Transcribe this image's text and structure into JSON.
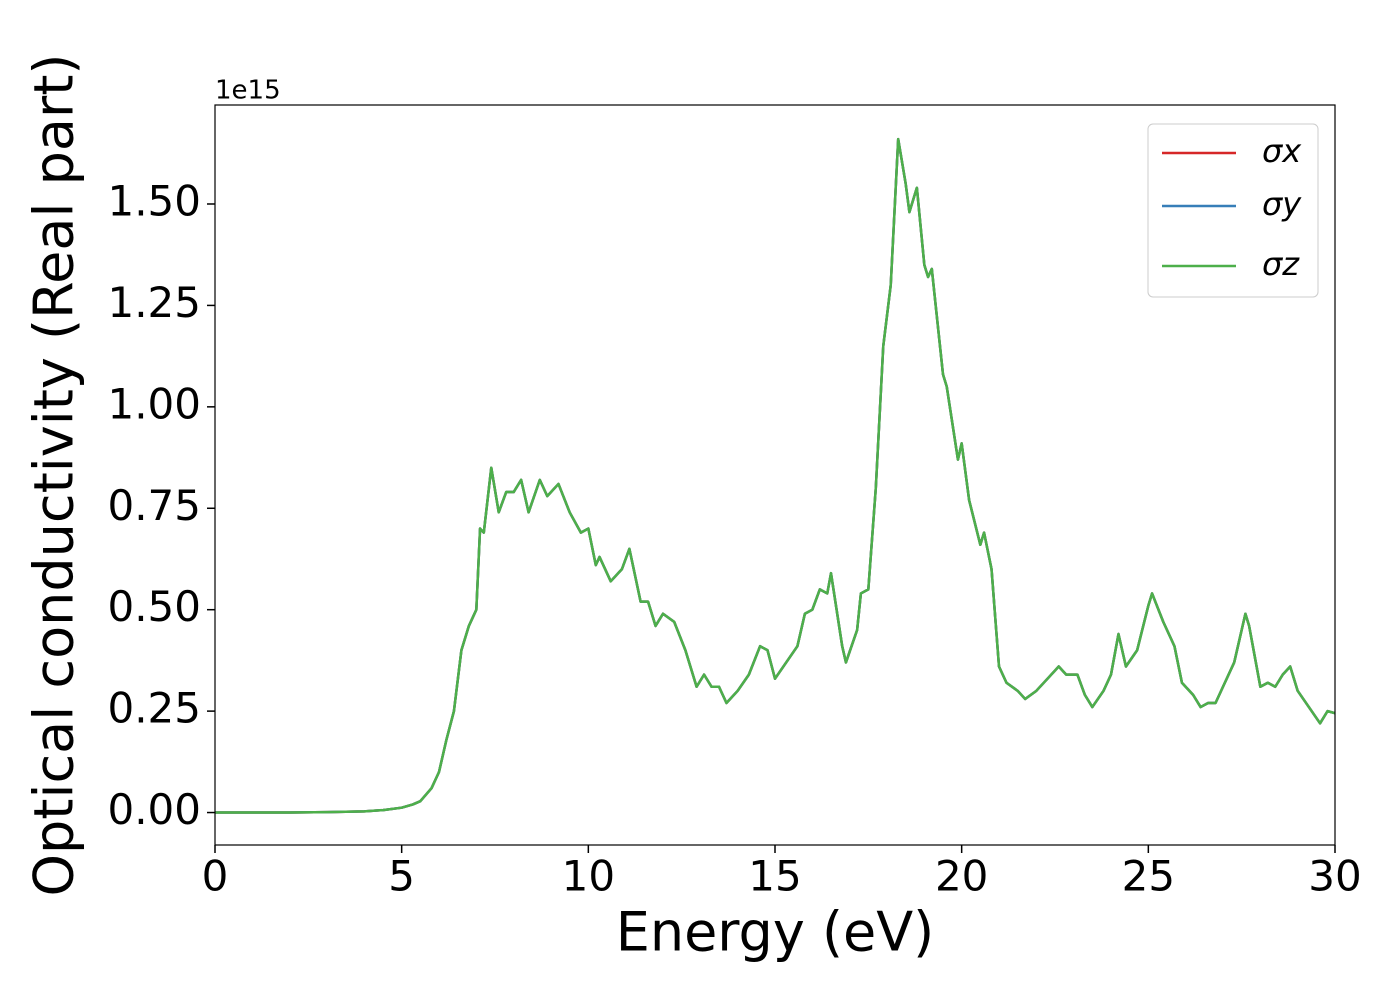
{
  "chart_data": {
    "type": "line",
    "x_label": "Energy (eV)",
    "y_label": "Optical conductivity (Real part)",
    "y_offset_text": "1e15",
    "x": [
      0,
      1,
      2,
      3,
      4,
      4.5,
      5,
      5.3,
      5.5,
      5.8,
      6.0,
      6.2,
      6.4,
      6.6,
      6.8,
      7.0,
      7.1,
      7.2,
      7.4,
      7.6,
      7.8,
      8.0,
      8.2,
      8.4,
      8.7,
      8.9,
      9.2,
      9.5,
      9.8,
      10.0,
      10.2,
      10.3,
      10.6,
      10.9,
      11.1,
      11.4,
      11.6,
      11.8,
      12.0,
      12.3,
      12.6,
      12.9,
      13.1,
      13.3,
      13.5,
      13.7,
      14.0,
      14.3,
      14.6,
      14.8,
      15.0,
      15.3,
      15.6,
      15.8,
      16.0,
      16.2,
      16.4,
      16.5,
      16.8,
      16.9,
      17.2,
      17.3,
      17.5,
      17.7,
      17.9,
      18.1,
      18.3,
      18.5,
      18.6,
      18.8,
      19.0,
      19.1,
      19.2,
      19.5,
      19.6,
      19.9,
      20.0,
      20.2,
      20.5,
      20.6,
      20.8,
      21.0,
      21.2,
      21.5,
      21.7,
      22.0,
      22.3,
      22.6,
      22.8,
      23.1,
      23.3,
      23.5,
      23.8,
      24.0,
      24.2,
      24.4,
      24.7,
      25.0,
      25.1,
      25.4,
      25.7,
      25.9,
      26.2,
      26.4,
      26.6,
      26.8,
      27.0,
      27.3,
      27.5,
      27.6,
      27.7,
      28.0,
      28.2,
      28.4,
      28.6,
      28.8,
      29.0,
      29.3,
      29.6,
      29.8,
      30.0
    ],
    "series": [
      {
        "name": "σx",
        "color": "#d62728",
        "values": [
          0,
          0,
          0,
          0.001,
          0.003,
          0.006,
          0.012,
          0.02,
          0.028,
          0.06,
          0.1,
          0.18,
          0.25,
          0.4,
          0.46,
          0.5,
          0.7,
          0.69,
          0.85,
          0.74,
          0.79,
          0.79,
          0.82,
          0.74,
          0.82,
          0.78,
          0.81,
          0.74,
          0.69,
          0.7,
          0.61,
          0.63,
          0.57,
          0.6,
          0.65,
          0.52,
          0.52,
          0.46,
          0.49,
          0.47,
          0.4,
          0.31,
          0.34,
          0.31,
          0.31,
          0.27,
          0.3,
          0.34,
          0.41,
          0.4,
          0.33,
          0.37,
          0.41,
          0.49,
          0.5,
          0.55,
          0.54,
          0.59,
          0.41,
          0.37,
          0.45,
          0.54,
          0.55,
          0.8,
          1.15,
          1.3,
          1.66,
          1.55,
          1.48,
          1.54,
          1.35,
          1.32,
          1.34,
          1.08,
          1.05,
          0.87,
          0.91,
          0.77,
          0.66,
          0.69,
          0.6,
          0.36,
          0.32,
          0.3,
          0.28,
          0.3,
          0.33,
          0.36,
          0.34,
          0.34,
          0.29,
          0.26,
          0.3,
          0.34,
          0.44,
          0.36,
          0.4,
          0.51,
          0.54,
          0.47,
          0.41,
          0.32,
          0.29,
          0.26,
          0.27,
          0.27,
          0.31,
          0.37,
          0.45,
          0.49,
          0.46,
          0.31,
          0.32,
          0.31,
          0.34,
          0.36,
          0.3,
          0.26,
          0.22,
          0.25,
          0.245
        ]
      },
      {
        "name": "σy",
        "color": "#377eb8",
        "values": [
          0,
          0,
          0,
          0.001,
          0.003,
          0.006,
          0.012,
          0.02,
          0.028,
          0.06,
          0.1,
          0.18,
          0.25,
          0.4,
          0.46,
          0.5,
          0.7,
          0.69,
          0.85,
          0.74,
          0.79,
          0.79,
          0.82,
          0.74,
          0.82,
          0.78,
          0.81,
          0.74,
          0.69,
          0.7,
          0.61,
          0.63,
          0.57,
          0.6,
          0.65,
          0.52,
          0.52,
          0.46,
          0.49,
          0.47,
          0.4,
          0.31,
          0.34,
          0.31,
          0.31,
          0.27,
          0.3,
          0.34,
          0.41,
          0.4,
          0.33,
          0.37,
          0.41,
          0.49,
          0.5,
          0.55,
          0.54,
          0.59,
          0.41,
          0.37,
          0.45,
          0.54,
          0.55,
          0.8,
          1.15,
          1.3,
          1.66,
          1.55,
          1.48,
          1.54,
          1.35,
          1.32,
          1.34,
          1.08,
          1.05,
          0.87,
          0.91,
          0.77,
          0.66,
          0.69,
          0.6,
          0.36,
          0.32,
          0.3,
          0.28,
          0.3,
          0.33,
          0.36,
          0.34,
          0.34,
          0.29,
          0.26,
          0.3,
          0.34,
          0.44,
          0.36,
          0.4,
          0.51,
          0.54,
          0.47,
          0.41,
          0.32,
          0.29,
          0.26,
          0.27,
          0.27,
          0.31,
          0.37,
          0.45,
          0.49,
          0.46,
          0.31,
          0.32,
          0.31,
          0.34,
          0.36,
          0.3,
          0.26,
          0.22,
          0.25,
          0.245
        ]
      },
      {
        "name": "σz",
        "color": "#4daf4a",
        "values": [
          0,
          0,
          0,
          0.001,
          0.003,
          0.006,
          0.012,
          0.02,
          0.028,
          0.06,
          0.1,
          0.18,
          0.25,
          0.4,
          0.46,
          0.5,
          0.7,
          0.69,
          0.85,
          0.74,
          0.79,
          0.79,
          0.82,
          0.74,
          0.82,
          0.78,
          0.81,
          0.74,
          0.69,
          0.7,
          0.61,
          0.63,
          0.57,
          0.6,
          0.65,
          0.52,
          0.52,
          0.46,
          0.49,
          0.47,
          0.4,
          0.31,
          0.34,
          0.31,
          0.31,
          0.27,
          0.3,
          0.34,
          0.41,
          0.4,
          0.33,
          0.37,
          0.41,
          0.49,
          0.5,
          0.55,
          0.54,
          0.59,
          0.41,
          0.37,
          0.45,
          0.54,
          0.55,
          0.8,
          1.15,
          1.3,
          1.66,
          1.55,
          1.48,
          1.54,
          1.35,
          1.32,
          1.34,
          1.08,
          1.05,
          0.87,
          0.91,
          0.77,
          0.66,
          0.69,
          0.6,
          0.36,
          0.32,
          0.3,
          0.28,
          0.3,
          0.33,
          0.36,
          0.34,
          0.34,
          0.29,
          0.26,
          0.3,
          0.34,
          0.44,
          0.36,
          0.4,
          0.51,
          0.54,
          0.47,
          0.41,
          0.32,
          0.29,
          0.26,
          0.27,
          0.27,
          0.31,
          0.37,
          0.45,
          0.49,
          0.46,
          0.31,
          0.32,
          0.31,
          0.34,
          0.36,
          0.3,
          0.26,
          0.22,
          0.25,
          0.245
        ]
      }
    ],
    "xlim": [
      0,
      30
    ],
    "xticks": [
      0,
      5,
      10,
      15,
      20,
      25,
      30
    ],
    "ylim": [
      -0.08,
      1.744
    ],
    "yticks": [
      {
        "value": 0,
        "label": "0.00"
      },
      {
        "value": 0.25,
        "label": "0.25"
      },
      {
        "value": 0.5,
        "label": "0.50"
      },
      {
        "value": 0.75,
        "label": "0.75"
      },
      {
        "value": 1.0,
        "label": "1.00"
      },
      {
        "value": 1.25,
        "label": "1.25"
      },
      {
        "value": 1.5,
        "label": "1.50"
      }
    ],
    "grid": false,
    "legend": "upper right"
  }
}
